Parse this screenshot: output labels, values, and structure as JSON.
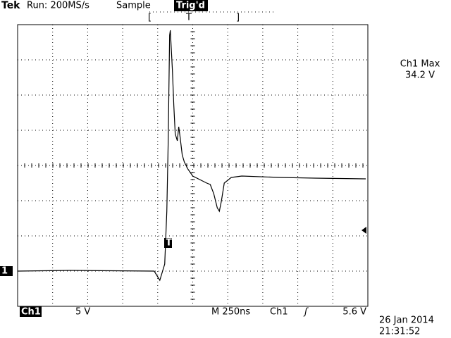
{
  "header": {
    "brand": "Tek",
    "run": "Run: 200MS/s",
    "mode": "Sample",
    "trigger_state": "Trig'd"
  },
  "measurement": {
    "label": "Ch1 Max",
    "value": "34.2 V"
  },
  "markers": {
    "trigger": "T",
    "channel": "1"
  },
  "footer": {
    "channel": "Ch1",
    "volts_per_div": "5 V",
    "timebase": "M 250ns",
    "trigger_source": "Ch1",
    "trigger_level": "5.6 V",
    "date": "26 Jan 2014",
    "time": "21:31:52"
  },
  "chart_data": {
    "type": "line",
    "color": "#000000",
    "grid": true,
    "xlim": [
      0,
      2500
    ],
    "ylim": [
      -5,
      35
    ],
    "x": [
      0,
      375,
      975,
      1015,
      1050,
      1065,
      1075,
      1085,
      1090,
      1105,
      1115,
      1125,
      1140,
      1150,
      1160,
      1175,
      1190,
      1215,
      1250,
      1300,
      1350,
      1375,
      1400,
      1425,
      1440,
      1455,
      1475,
      1525,
      1600,
      1875,
      2125,
      2485
    ],
    "values": [
      0,
      0.1,
      0,
      -1.3,
      1.0,
      8.5,
      18.5,
      33.5,
      34.2,
      28.5,
      23.5,
      19.5,
      18.5,
      20.5,
      19,
      16.5,
      15.5,
      14.5,
      13.5,
      13,
      12.5,
      12.3,
      11,
      9,
      8.5,
      10,
      12.5,
      13.3,
      13.5,
      13.3,
      13.2,
      13.1
    ]
  }
}
